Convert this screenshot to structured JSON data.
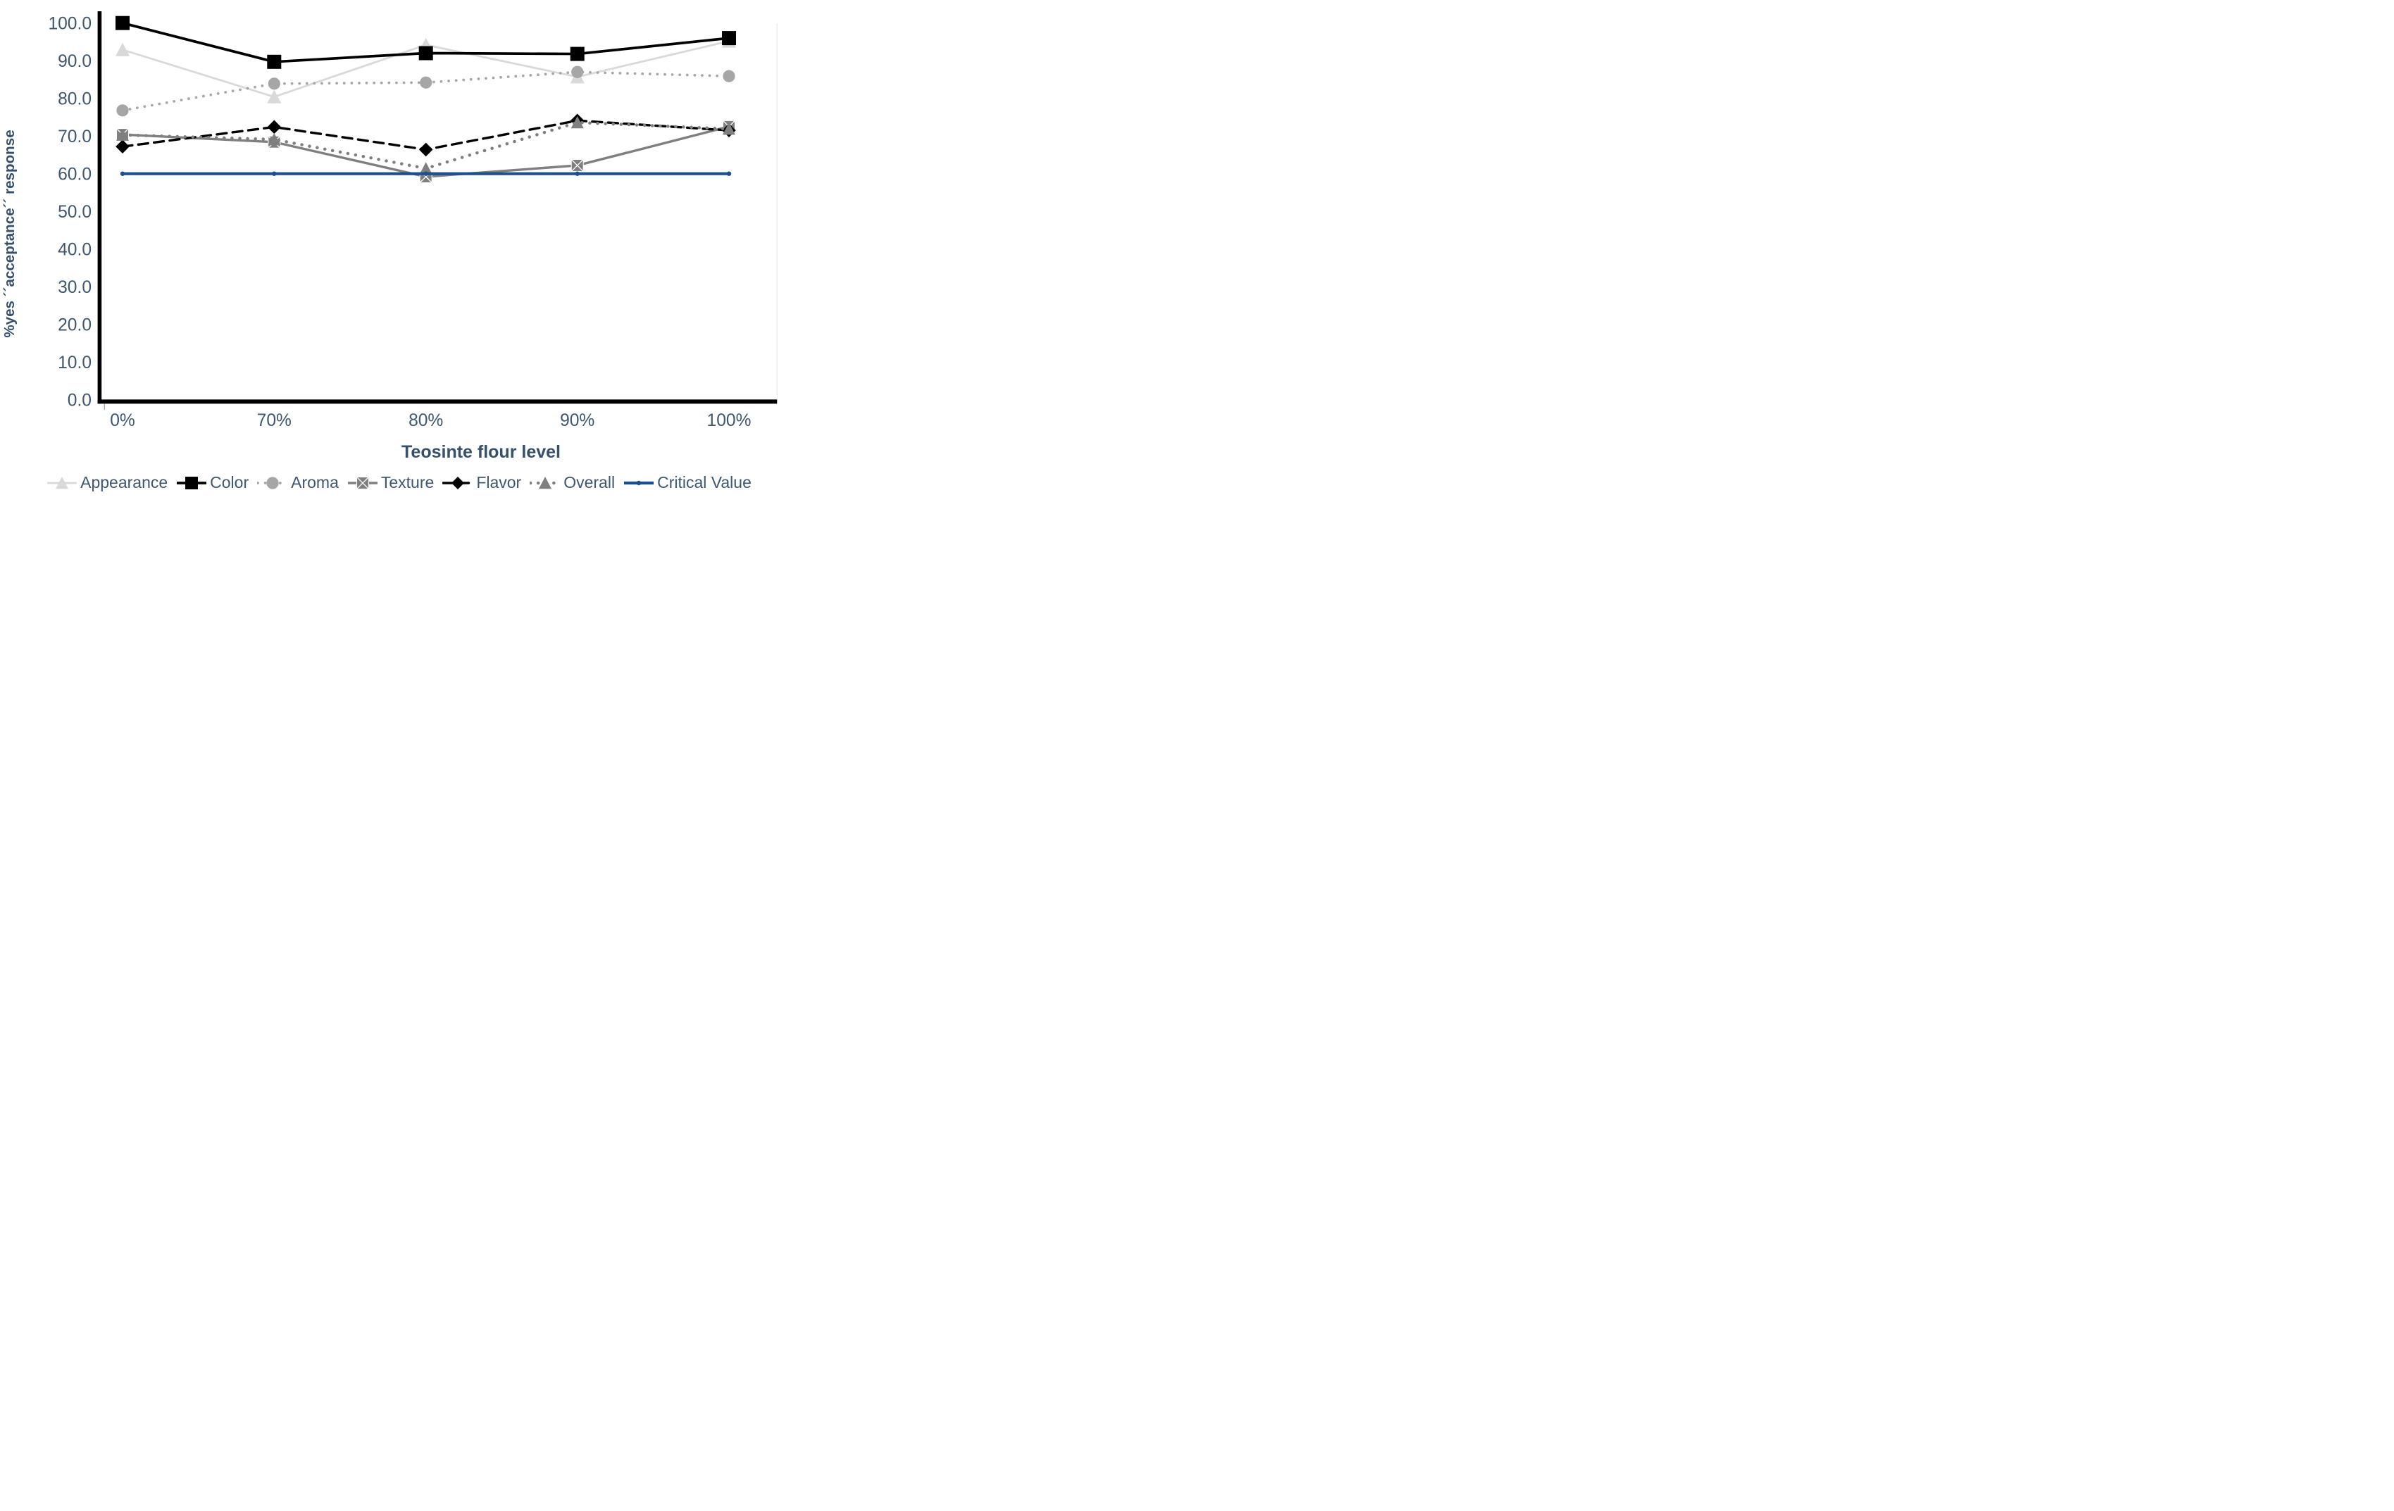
{
  "chart_data": {
    "type": "line",
    "title": "",
    "xlabel": "Teosinte flour level",
    "ylabel": "%yes ´´acceptance´´ response",
    "categories": [
      "0%",
      "70%",
      "80%",
      "90%",
      "100%"
    ],
    "ylim": [
      0,
      100
    ],
    "ytick_step": 10,
    "ytick_labels": [
      "0.0",
      "10.0",
      "20.0",
      "30.0",
      "40.0",
      "50.0",
      "60.0",
      "70.0",
      "80.0",
      "90.0",
      "100.0"
    ],
    "grid": false,
    "legend_position": "bottom",
    "axis_color": "#000000",
    "text_color": "#3E5771",
    "series": [
      {
        "name": "Appearance",
        "values": [
          92.9,
          80.4,
          94.2,
          85.7,
          95.2
        ],
        "color": "#D9D9D9",
        "line": "solid",
        "marker": "triangle"
      },
      {
        "name": "Color",
        "values": [
          100.0,
          89.7,
          92.0,
          91.8,
          96.0
        ],
        "color": "#000000",
        "line": "solid",
        "marker": "square"
      },
      {
        "name": "Aroma",
        "values": [
          76.8,
          83.9,
          84.2,
          87.0,
          85.9
        ],
        "color": "#A6A6A6",
        "line": "dotted",
        "marker": "circle"
      },
      {
        "name": "Texture",
        "values": [
          70.4,
          68.4,
          59.2,
          62.2,
          72.5
        ],
        "color": "#7F7F7F",
        "line": "solid",
        "marker": "square-x"
      },
      {
        "name": "Flavor",
        "values": [
          67.2,
          72.4,
          66.4,
          74.1,
          71.5
        ],
        "color": "#000000",
        "line": "dashed",
        "marker": "diamond"
      },
      {
        "name": "Overall",
        "values": [
          70.3,
          69.1,
          61.4,
          73.6,
          71.9
        ],
        "color": "#7F7F7F",
        "line": "dotted",
        "marker": "triangle"
      },
      {
        "name": "Critical Value",
        "values": [
          60.0,
          60.0,
          60.0,
          60.0,
          60.0
        ],
        "color": "#1B4F8C",
        "line": "solid",
        "marker": "dot"
      }
    ]
  }
}
